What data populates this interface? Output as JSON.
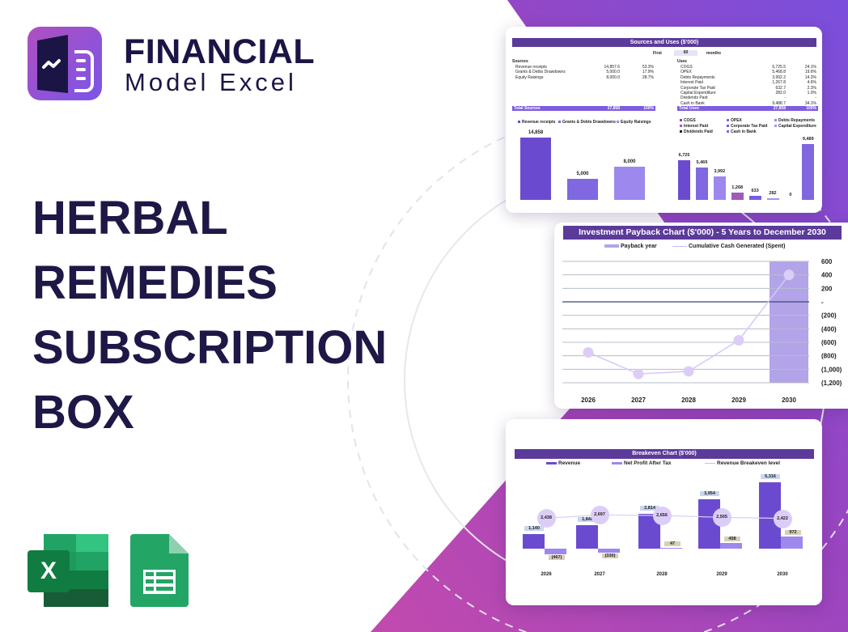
{
  "brand": {
    "line1": "FINANCIAL",
    "line2": "Model Excel"
  },
  "headline": [
    "HERBAL",
    "REMEDIES",
    "SUBSCRIPTION",
    "BOX"
  ],
  "app_icons": [
    "excel-icon",
    "google-sheets-icon"
  ],
  "colors": {
    "navy": "#1e1846",
    "header": "#5b3a9a",
    "bar_dark": "#6a4bd0",
    "bar_mid": "#7f68e0",
    "bar_light": "#9d88ee",
    "accent_magenta": "#c04fb0"
  },
  "sources_uses": {
    "title": "Sources and Uses ($'000)",
    "first_label": "First",
    "months_value": "60",
    "months_label": "months",
    "sources_heading": "Sources",
    "sources": [
      {
        "label": "Revenue receipts",
        "value": "14,857.6",
        "pct": "53.3%"
      },
      {
        "label": "Grants & Debts Drawdowns",
        "value": "5,000.0",
        "pct": "17.9%"
      },
      {
        "label": "Equity Raisings",
        "value": "8,000.0",
        "pct": "28.7%"
      }
    ],
    "sources_total": {
      "label": "Total Sources",
      "value": "27,858",
      "pct": "100%"
    },
    "uses_heading": "Uses",
    "uses": [
      {
        "label": "COGS",
        "value": "6,725.5",
        "pct": "24.1%"
      },
      {
        "label": "OPEX",
        "value": "5,468.8",
        "pct": "19.6%"
      },
      {
        "label": "Debts Repayments",
        "value": "3,992.2",
        "pct": "14.3%"
      },
      {
        "label": "Interest Paid",
        "value": "1,267.8",
        "pct": "4.6%"
      },
      {
        "label": "Corporate Tax Paid",
        "value": "632.7",
        "pct": "2.3%"
      },
      {
        "label": "Capital Expenditure",
        "value": "282.0",
        "pct": "1.0%"
      },
      {
        "label": "Dividends Paid",
        "value": "-",
        "pct": "-"
      },
      {
        "label": "Cash in Bank",
        "value": "9,488.7",
        "pct": "34.1%"
      }
    ],
    "uses_total": {
      "label": "Total Uses",
      "value": "27,858",
      "pct": "100%"
    }
  },
  "chart_data": [
    {
      "type": "bar",
      "categories": [
        "Revenue receipts",
        "Grants & Debts Drawdowns",
        "Equity Raisings"
      ],
      "values": [
        14858,
        5000,
        8000
      ],
      "labels": [
        "14,858",
        "5,000",
        "8,000"
      ],
      "colors": [
        "#6a4bd0",
        "#7f68e0",
        "#9d88ee"
      ],
      "legend": "top"
    },
    {
      "type": "bar",
      "categories": [
        "COGS",
        "OPEX",
        "Debts Repayments",
        "Interest Paid",
        "Corporate Tax Paid",
        "Capital Expenditure",
        "Dividends Paid",
        "Cash in Bank"
      ],
      "values": [
        6725,
        5469,
        3992,
        1268,
        633,
        282,
        0,
        9489
      ],
      "labels": [
        "6,725",
        "5,469",
        "3,992",
        "1,268",
        "633",
        "282",
        "0",
        "9,489"
      ],
      "colors": [
        "#6a4bd0",
        "#7f68e0",
        "#9d88ee",
        "#a05ab8",
        "#7a5ce0",
        "#a593f0",
        "#222222",
        "#8067e0"
      ],
      "legend": "top"
    },
    {
      "type": "line",
      "title": "Investment Payback Chart ($'000) - 5 Years to December 2030",
      "categories": [
        "2026",
        "2027",
        "2028",
        "2029",
        "2030"
      ],
      "series": [
        {
          "name": "Payback year",
          "kind": "bar",
          "values": [
            0,
            0,
            0,
            0,
            1
          ]
        },
        {
          "name": "Cumulative Cash Generated (Spent)",
          "kind": "line",
          "values": [
            -750,
            -1070,
            -1030,
            -570,
            400
          ]
        }
      ],
      "ylim": [
        -1200,
        600
      ],
      "yticks": [
        "600",
        "400",
        "200",
        "-",
        "(200)",
        "(400)",
        "(600)",
        "(800)",
        "(1,000)",
        "(1,200)"
      ],
      "grid": true,
      "legend": "top"
    },
    {
      "type": "bar",
      "title": "Breakeven Chart ($'000)",
      "categories": [
        "2026",
        "2027",
        "2028",
        "2029",
        "2030"
      ],
      "series": [
        {
          "name": "Revenue",
          "values": [
            1140,
            1848,
            2814,
            3954,
            5316
          ],
          "labels": [
            "1,140",
            "1,848",
            "2,814",
            "3,954",
            "5,316"
          ]
        },
        {
          "name": "Net Profit After Tax",
          "values": [
            -467,
            -330,
            47,
            458,
            972
          ],
          "labels": [
            "(467)",
            "(330)",
            "47",
            "458",
            "972"
          ]
        },
        {
          "name": "Revenue Breakeven level",
          "kind": "line",
          "values": [
            2438,
            2697,
            2656,
            2505,
            2422
          ],
          "labels": [
            "2,438",
            "2,697",
            "2,656",
            "2,505",
            "2,422"
          ]
        }
      ],
      "legend": "top"
    }
  ]
}
